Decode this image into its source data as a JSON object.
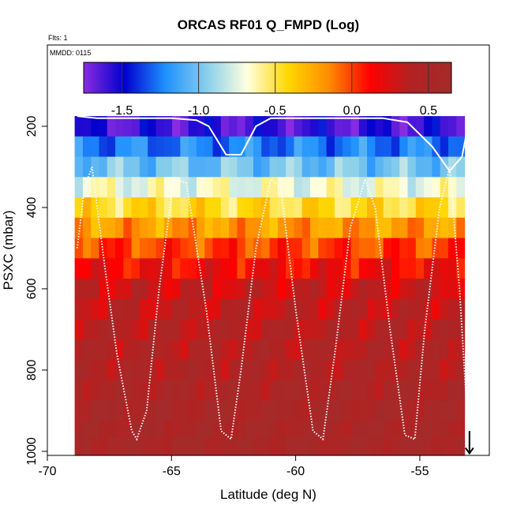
{
  "chart_data": {
    "type": "heatmap",
    "title": "ORCAS RF01 Q_FMPD (Log)",
    "flights_note": "Flts: 1",
    "date_note": "MMDD: 0115",
    "xlabel": "Latitude (deg N)",
    "ylabel": "PSXC (mbar)",
    "xlim": [
      -70,
      -52.2
    ],
    "ylim": [
      1010,
      0
    ],
    "x_ticks": [
      -70,
      -65,
      -60,
      -55
    ],
    "x_tick_labels": [
      "-70",
      "-65",
      "-60",
      "-55"
    ],
    "y_ticks": [
      200,
      400,
      600,
      800,
      1000
    ],
    "y_tick_labels": [
      "200",
      "400",
      "600",
      "800",
      "1000"
    ],
    "colorbar": {
      "range": [
        -1.75,
        0.65
      ],
      "ticks": [
        -1.5,
        -1.0,
        -0.5,
        0.0,
        0.5
      ],
      "tick_labels": [
        "-1.5",
        "-1.0",
        "-0.5",
        "0.0",
        "0.5"
      ],
      "colors": [
        "#8a2be2",
        "#0000cd",
        "#1e90ff",
        "#87ceeb",
        "#ffffe0",
        "#ffd700",
        "#ff8c00",
        "#ff0000",
        "#b22222",
        "#a52a2a"
      ]
    },
    "pressure_bands": [
      {
        "p_top": 175,
        "p_bot": 225,
        "value": -1.6
      },
      {
        "p_top": 225,
        "p_bot": 275,
        "value": -1.25
      },
      {
        "p_top": 275,
        "p_bot": 325,
        "value": -1.0
      },
      {
        "p_top": 325,
        "p_bot": 375,
        "value": -0.7
      },
      {
        "p_top": 375,
        "p_bot": 425,
        "value": -0.45
      },
      {
        "p_top": 425,
        "p_bot": 475,
        "value": -0.2
      },
      {
        "p_top": 475,
        "p_bot": 525,
        "value": 0.0
      },
      {
        "p_top": 525,
        "p_bot": 575,
        "value": 0.15
      },
      {
        "p_top": 575,
        "p_bot": 625,
        "value": 0.3
      },
      {
        "p_top": 625,
        "p_bot": 675,
        "value": 0.35
      },
      {
        "p_top": 675,
        "p_bot": 725,
        "value": 0.4
      },
      {
        "p_top": 725,
        "p_bot": 775,
        "value": 0.42
      },
      {
        "p_top": 775,
        "p_bot": 825,
        "value": 0.45
      },
      {
        "p_top": 825,
        "p_bot": 875,
        "value": 0.5
      },
      {
        "p_top": 875,
        "p_bot": 925,
        "value": 0.55
      },
      {
        "p_top": 925,
        "p_bot": 965,
        "value": 0.55
      },
      {
        "p_top": 965,
        "p_bot": 1010,
        "value": 0.58
      }
    ],
    "lat_range": [
      -68.9,
      -53.2
    ],
    "flight_track_solid": [
      [
        -68.8,
        175
      ],
      [
        -68.0,
        180
      ],
      [
        -65.0,
        180
      ],
      [
        -64.0,
        185
      ],
      [
        -63.5,
        200
      ],
      [
        -62.8,
        270
      ],
      [
        -62.2,
        270
      ],
      [
        -61.6,
        200
      ],
      [
        -61.0,
        180
      ],
      [
        -56.5,
        180
      ],
      [
        -55.5,
        190
      ],
      [
        -54.5,
        250
      ],
      [
        -53.8,
        310
      ],
      [
        -53.3,
        275
      ],
      [
        -53.0,
        180
      ]
    ],
    "flight_track_dotted": [
      [
        -68.8,
        500
      ],
      [
        -68.5,
        350
      ],
      [
        -68.2,
        300
      ],
      [
        -67.7,
        540
      ],
      [
        -67.2,
        760
      ],
      [
        -66.6,
        950
      ],
      [
        -66.4,
        970
      ],
      [
        -66.0,
        900
      ],
      [
        -65.5,
        600
      ],
      [
        -64.9,
        330
      ],
      [
        -64.4,
        340
      ],
      [
        -63.6,
        650
      ],
      [
        -63.0,
        950
      ],
      [
        -62.6,
        970
      ],
      [
        -62.2,
        800
      ],
      [
        -61.6,
        500
      ],
      [
        -61.0,
        330
      ],
      [
        -60.6,
        350
      ],
      [
        -60.0,
        650
      ],
      [
        -59.3,
        950
      ],
      [
        -58.9,
        970
      ],
      [
        -58.4,
        750
      ],
      [
        -57.8,
        450
      ],
      [
        -57.2,
        330
      ],
      [
        -56.8,
        400
      ],
      [
        -56.2,
        700
      ],
      [
        -55.6,
        960
      ],
      [
        -55.2,
        970
      ],
      [
        -54.8,
        700
      ],
      [
        -54.2,
        400
      ],
      [
        -53.8,
        300
      ],
      [
        -53.4,
        600
      ],
      [
        -53.0,
        1000
      ]
    ],
    "end_arrow": {
      "lat": -53.0,
      "p_from": 950,
      "p_to": 1005
    }
  }
}
